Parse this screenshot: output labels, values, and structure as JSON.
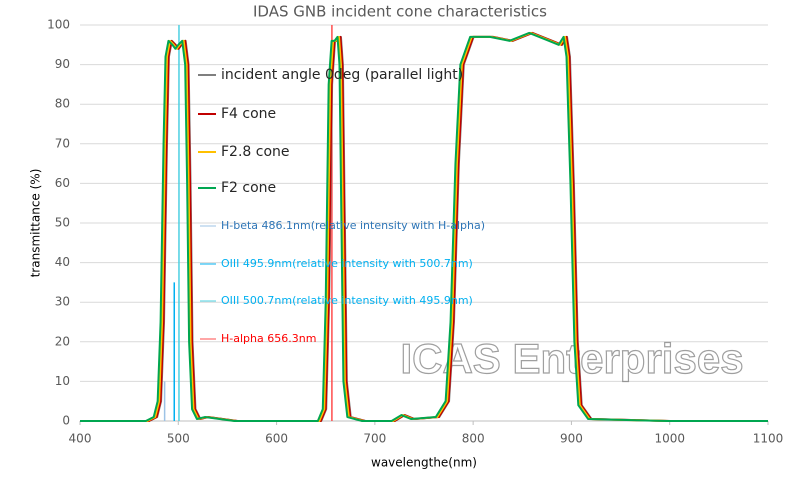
{
  "chart_data": {
    "type": "line",
    "title": "IDAS GNB incident cone characteristics",
    "xlabel": "wavelengthe(nm)",
    "ylabel": "transmittance (%)",
    "watermark": "ICAS Enterprises",
    "xlim": [
      400,
      1100
    ],
    "xticks": [
      400,
      500,
      600,
      700,
      800,
      900,
      1000,
      1100
    ],
    "ylim": [
      0,
      100
    ],
    "yticks": [
      0,
      10,
      20,
      30,
      40,
      50,
      60,
      70,
      80,
      90,
      100
    ],
    "grid": true,
    "series": [
      {
        "name": "incident angle 0deg (parallel light)",
        "color": "#7f7f7f",
        "x": [
          400,
          470.5,
          478.5,
          482.5,
          485.5,
          488.5,
          490.5,
          493.5,
          497.5,
          500.5,
          503.5,
          507.5,
          510.5,
          512.5,
          514.5,
          517.5,
          522.5,
          530.5,
          545.5,
          560.5,
          645.5,
          650.5,
          653.5,
          656.5,
          659.5,
          662.5,
          665.5,
          667.5,
          669.5,
          671.5,
          675.5,
          690.5,
          720.5,
          730.5,
          740.5,
          765.5,
          775.5,
          780.5,
          785.5,
          790.5,
          800.5,
          820.5,
          840.5,
          860.5,
          880.5,
          890.5,
          895.5,
          898.5,
          902.5,
          906.5,
          910.5,
          920.5,
          1000.5,
          1100
        ],
        "values": [
          0,
          0,
          1,
          5,
          25,
          70,
          92,
          96,
          95,
          94,
          95,
          96,
          90,
          60,
          20,
          3,
          0.5,
          1,
          0.5,
          0,
          0,
          3,
          30,
          85,
          96,
          96,
          97,
          90,
          50,
          10,
          1,
          0,
          0,
          1.5,
          0.5,
          1,
          5,
          25,
          65,
          90,
          97,
          97,
          96,
          98,
          96,
          95,
          97,
          92,
          60,
          20,
          4,
          0.5,
          0,
          0
        ]
      },
      {
        "name": "F4 cone",
        "color": "#c00000",
        "x": [
          400,
          470,
          478,
          482,
          485,
          488,
          490,
          493,
          497,
          500,
          503,
          507,
          510,
          512,
          514,
          517,
          522,
          530,
          545,
          560,
          645,
          650,
          653,
          656,
          659,
          662,
          665,
          667,
          669,
          671,
          675,
          690,
          720,
          730,
          740,
          765,
          775,
          780,
          785,
          790,
          800,
          820,
          840,
          860,
          880,
          890,
          895,
          898,
          902,
          906,
          910,
          920,
          1000,
          1100
        ],
        "values": [
          0,
          0,
          1,
          5,
          25,
          70,
          92,
          96,
          95,
          94,
          95,
          96,
          90,
          60,
          20,
          3,
          0.5,
          1,
          0.5,
          0,
          0,
          3,
          30,
          85,
          96,
          96,
          97,
          90,
          50,
          10,
          1,
          0,
          0,
          1.5,
          0.5,
          1,
          5,
          25,
          65,
          90,
          97,
          97,
          96,
          98,
          96,
          95,
          97,
          92,
          60,
          20,
          4,
          0.5,
          0,
          0
        ]
      },
      {
        "name": "F2.8 cone",
        "color": "#ffc000",
        "x": [
          400,
          468.5,
          476.5,
          480.5,
          483.5,
          486.5,
          488.5,
          491.5,
          495.5,
          498.5,
          501.5,
          505.5,
          508.5,
          510.5,
          512.5,
          515.5,
          520.5,
          528.5,
          543.5,
          558.5,
          643.5,
          648.5,
          651.5,
          654.5,
          657.5,
          660.5,
          663.5,
          665.5,
          667.5,
          669.5,
          673.5,
          688.5,
          718.5,
          728.5,
          738.5,
          763.5,
          773.5,
          778.5,
          783.5,
          788.5,
          798.5,
          818.5,
          838.5,
          858.5,
          878.5,
          888.5,
          893.5,
          896.5,
          900.5,
          904.5,
          908.5,
          918.5,
          998.5,
          1100
        ],
        "values": [
          0,
          0,
          1,
          5,
          25,
          70,
          92,
          96,
          95,
          94,
          95,
          96,
          90,
          60,
          20,
          3,
          0.5,
          1,
          0.5,
          0,
          0,
          3,
          30,
          85,
          96,
          96,
          97,
          90,
          50,
          10,
          1,
          0,
          0,
          1.5,
          0.5,
          1,
          5,
          25,
          65,
          90,
          97,
          97,
          96,
          98,
          96,
          95,
          97,
          92,
          60,
          20,
          4,
          0.5,
          0,
          0
        ]
      },
      {
        "name": "F2 cone",
        "color": "#00a650",
        "x": [
          400,
          467,
          475,
          479,
          482,
          485,
          487,
          490,
          494,
          497,
          500,
          504,
          507,
          509,
          511,
          514,
          519,
          527,
          542,
          557,
          642,
          647,
          650,
          653,
          656,
          659,
          662,
          664,
          666,
          668,
          672,
          687,
          717,
          727,
          737,
          762,
          772,
          777,
          782,
          787,
          797,
          817,
          837,
          857,
          877,
          887,
          892,
          895,
          899,
          903,
          907,
          917,
          997,
          1100
        ],
        "values": [
          0,
          0,
          1,
          5,
          25,
          70,
          92,
          96,
          95,
          94,
          95,
          96,
          90,
          60,
          20,
          3,
          0.5,
          1,
          0.5,
          0,
          0,
          3,
          30,
          85,
          96,
          96,
          97,
          90,
          50,
          10,
          1,
          0,
          0,
          1.5,
          0.5,
          1,
          5,
          25,
          65,
          90,
          97,
          97,
          96,
          98,
          96,
          95,
          97,
          92,
          60,
          20,
          4,
          0.5,
          0,
          0
        ]
      }
    ],
    "lines": [
      {
        "name": "H-beta 486.1nm(relative intensity with H-alpha)",
        "color": "#9dc3e6",
        "text_color": "#2e75b6",
        "x": 486.1,
        "value": 10
      },
      {
        "name": "OIII 495.9nm(relative intensity with 500.7nm)",
        "color": "#00b0f0",
        "text_color": "#00b0f0",
        "x": 495.9,
        "value": 35
      },
      {
        "name": "OIII 500.7nm(relative intensity with 495.9nm)",
        "color": "#4dd0e1",
        "text_color": "#00b0f0",
        "x": 500.7,
        "value": 100
      },
      {
        "name": "H-alpha 656.3nm",
        "color": "#ff4d4d",
        "text_color": "#ff0000",
        "x": 656.3,
        "value": 100
      }
    ]
  }
}
